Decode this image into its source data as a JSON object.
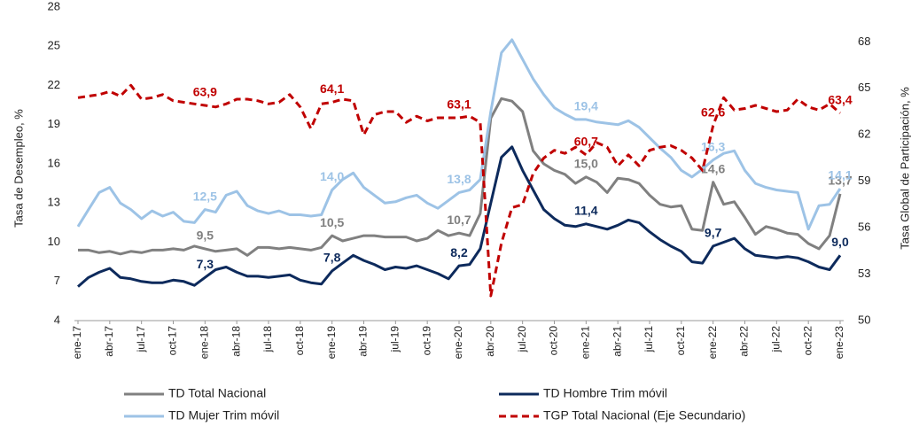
{
  "chart_data": {
    "type": "line",
    "y_label": "Tasa de Desempleo, %",
    "y2_label": "Tasa Global de Participación, %",
    "categories": [
      "ene-17",
      null,
      null,
      "abr-17",
      null,
      null,
      "jul-17",
      null,
      null,
      "oct-17",
      null,
      null,
      "ene-18",
      null,
      null,
      "abr-18",
      null,
      null,
      "jul-18",
      null,
      null,
      "oct-18",
      null,
      null,
      "ene-19",
      null,
      null,
      "abr-19",
      null,
      null,
      "jul-19",
      null,
      null,
      "oct-19",
      null,
      null,
      "ene-20",
      null,
      null,
      "abr-20",
      null,
      null,
      "jul-20",
      null,
      null,
      "oct-20",
      null,
      null,
      "ene-21",
      null,
      null,
      "abr-21",
      null,
      null,
      "jul-21",
      null,
      null,
      "oct-21",
      null,
      null,
      "ene-22",
      null,
      null,
      "abr-22",
      null,
      null,
      "jul-22",
      null,
      null,
      "oct-22",
      null,
      null,
      "ene-23"
    ],
    "ylim": [
      4,
      28
    ],
    "yticks": [
      4,
      7,
      10,
      13,
      16,
      19,
      22,
      25,
      28
    ],
    "y2lim": [
      50,
      70.25
    ],
    "y2ticks": [
      50,
      53,
      56,
      59,
      62,
      65,
      68
    ],
    "series": [
      {
        "name": "TD Total Nacional",
        "color": "#808080",
        "dash": false,
        "values": [
          9.4,
          9.4,
          9.2,
          9.3,
          9.1,
          9.3,
          9.2,
          9.4,
          9.4,
          9.5,
          9.4,
          9.7,
          9.5,
          9.3,
          9.4,
          9.5,
          9.0,
          9.6,
          9.6,
          9.5,
          9.6,
          9.5,
          9.4,
          9.6,
          10.5,
          10.1,
          10.3,
          10.5,
          10.5,
          10.4,
          10.4,
          10.4,
          10.1,
          10.3,
          10.9,
          10.5,
          10.7,
          10.5,
          12.2,
          19.5,
          21.0,
          20.8,
          20.0,
          17.0,
          16.0,
          15.5,
          15.2,
          14.5,
          15.0,
          14.6,
          13.8,
          14.9,
          14.8,
          14.5,
          13.6,
          12.9,
          12.7,
          12.8,
          11.0,
          10.9,
          14.6,
          12.9,
          13.1,
          11.9,
          10.6,
          11.2,
          11.0,
          10.7,
          10.6,
          9.9,
          9.5,
          10.5,
          13.7
        ],
        "value_labels": [
          null,
          null,
          null,
          null,
          null,
          null,
          null,
          null,
          null,
          null,
          null,
          null,
          "9,5",
          null,
          null,
          null,
          null,
          null,
          null,
          null,
          null,
          null,
          null,
          null,
          "10,5",
          null,
          null,
          null,
          null,
          null,
          null,
          null,
          null,
          null,
          null,
          null,
          "10,7",
          null,
          null,
          null,
          null,
          null,
          null,
          null,
          null,
          null,
          null,
          null,
          "15,0",
          null,
          null,
          null,
          null,
          null,
          null,
          null,
          null,
          null,
          null,
          null,
          "14,6",
          null,
          null,
          null,
          null,
          null,
          null,
          null,
          null,
          null,
          null,
          null,
          "13,7"
        ]
      },
      {
        "name": "TD Hombre Trim móvil",
        "color": "#0d2a5c",
        "dash": false,
        "values": [
          6.6,
          7.3,
          7.7,
          8.0,
          7.3,
          7.2,
          7.0,
          6.9,
          6.9,
          7.1,
          7.0,
          6.7,
          7.3,
          7.9,
          8.1,
          7.7,
          7.4,
          7.4,
          7.3,
          7.4,
          7.5,
          7.1,
          6.9,
          6.8,
          7.8,
          8.4,
          9.0,
          8.6,
          8.3,
          7.9,
          8.1,
          8.0,
          8.2,
          7.9,
          7.6,
          7.2,
          8.2,
          8.3,
          9.5,
          13.0,
          16.5,
          17.3,
          15.5,
          14.0,
          12.5,
          11.8,
          11.3,
          11.2,
          11.4,
          11.2,
          11.0,
          11.3,
          11.7,
          11.5,
          10.8,
          10.2,
          9.7,
          9.3,
          8.5,
          8.4,
          9.7,
          10.0,
          10.3,
          9.5,
          9.0,
          8.9,
          8.8,
          8.9,
          8.8,
          8.5,
          8.1,
          7.9,
          9.0
        ],
        "value_labels": [
          null,
          null,
          null,
          null,
          null,
          null,
          null,
          null,
          null,
          null,
          null,
          null,
          "7,3",
          null,
          null,
          null,
          null,
          null,
          null,
          null,
          null,
          null,
          null,
          null,
          "7,8",
          null,
          null,
          null,
          null,
          null,
          null,
          null,
          null,
          null,
          null,
          null,
          "8,2",
          null,
          null,
          null,
          null,
          null,
          null,
          null,
          null,
          null,
          null,
          null,
          "11,4",
          null,
          null,
          null,
          null,
          null,
          null,
          null,
          null,
          null,
          null,
          null,
          "9,7",
          null,
          null,
          null,
          null,
          null,
          null,
          null,
          null,
          null,
          null,
          null,
          "9,0"
        ]
      },
      {
        "name": "TD Mujer Trim móvil",
        "color": "#9dc3e6",
        "dash": false,
        "values": [
          11.2,
          12.5,
          13.8,
          14.2,
          13.0,
          12.5,
          11.8,
          12.4,
          12.0,
          12.3,
          11.6,
          11.5,
          12.5,
          12.3,
          13.6,
          13.9,
          12.8,
          12.4,
          12.2,
          12.4,
          12.1,
          12.1,
          12.0,
          12.1,
          14.0,
          14.8,
          15.3,
          14.2,
          13.6,
          13.0,
          13.1,
          13.4,
          13.6,
          13.0,
          12.6,
          13.2,
          13.8,
          14.0,
          14.8,
          20.0,
          24.5,
          25.5,
          24.0,
          22.5,
          21.3,
          20.3,
          19.8,
          19.4,
          19.4,
          19.2,
          19.1,
          19.0,
          19.3,
          18.8,
          18.0,
          17.2,
          16.5,
          15.5,
          15.0,
          15.6,
          16.3,
          16.8,
          17.0,
          15.5,
          14.5,
          14.2,
          14.0,
          13.9,
          13.8,
          11.0,
          12.8,
          12.9,
          14.1
        ],
        "value_labels": [
          null,
          null,
          null,
          null,
          null,
          null,
          null,
          null,
          null,
          null,
          null,
          null,
          "12,5",
          null,
          null,
          null,
          null,
          null,
          null,
          null,
          null,
          null,
          null,
          null,
          "14,0",
          null,
          null,
          null,
          null,
          null,
          null,
          null,
          null,
          null,
          null,
          null,
          "13,8",
          null,
          null,
          null,
          null,
          null,
          null,
          null,
          null,
          null,
          null,
          null,
          "19,4",
          null,
          null,
          null,
          null,
          null,
          null,
          null,
          null,
          null,
          null,
          null,
          "16,3",
          null,
          null,
          null,
          null,
          null,
          null,
          null,
          null,
          null,
          null,
          null,
          "14,1"
        ]
      },
      {
        "name": "TGP Total Nacional (Eje Secundario)",
        "color": "#c00000",
        "dash": true,
        "axis": "y2",
        "values": [
          64.4,
          64.5,
          64.6,
          64.8,
          64.5,
          65.2,
          64.3,
          64.4,
          64.6,
          64.2,
          64.1,
          64.0,
          63.9,
          63.8,
          64.0,
          64.3,
          64.3,
          64.2,
          64.0,
          64.1,
          64.6,
          63.8,
          62.4,
          64.0,
          64.1,
          64.3,
          64.2,
          62.0,
          63.3,
          63.5,
          63.5,
          62.8,
          63.2,
          62.9,
          63.1,
          63.1,
          63.1,
          63.2,
          62.8,
          51.6,
          55.0,
          57.3,
          57.5,
          59.5,
          60.5,
          61.0,
          60.8,
          61.2,
          60.7,
          61.5,
          61.2,
          60.0,
          60.7,
          60.0,
          61.0,
          61.2,
          61.3,
          61.0,
          60.5,
          59.7,
          62.6,
          64.4,
          63.6,
          63.7,
          63.9,
          63.7,
          63.5,
          63.6,
          64.3,
          63.8,
          63.6,
          64.0,
          63.4
        ],
        "value_labels": [
          null,
          null,
          null,
          null,
          null,
          null,
          null,
          null,
          null,
          null,
          null,
          null,
          "63,9",
          null,
          null,
          null,
          null,
          null,
          null,
          null,
          null,
          null,
          null,
          null,
          "64,1",
          null,
          null,
          null,
          null,
          null,
          null,
          null,
          null,
          null,
          null,
          null,
          "63,1",
          null,
          null,
          null,
          null,
          null,
          null,
          null,
          null,
          null,
          null,
          null,
          "60,7",
          null,
          null,
          null,
          null,
          null,
          null,
          null,
          null,
          null,
          null,
          null,
          "62,6",
          null,
          null,
          null,
          null,
          null,
          null,
          null,
          null,
          null,
          null,
          null,
          "63,4"
        ]
      }
    ]
  }
}
